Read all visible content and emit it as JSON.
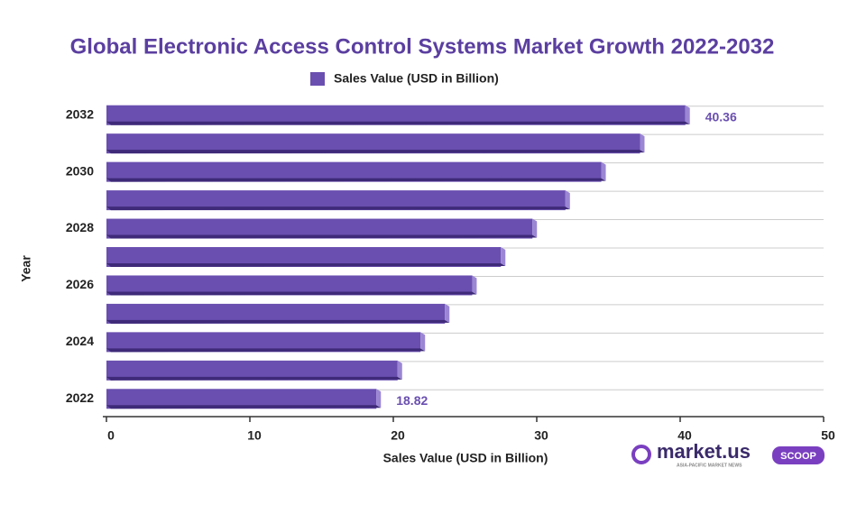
{
  "chart_data": {
    "type": "hbar",
    "title": "Global Electronic Access Control Systems Market Growth 2022-2032",
    "x_label": "Sales Value (USD in Billion)",
    "y_label": "Year",
    "categories": [
      "2022",
      null,
      "2024",
      null,
      "2026",
      null,
      "2028",
      null,
      "2030",
      null,
      "2032"
    ],
    "series": [
      {
        "name": "Sales Value (USD in Billion)",
        "color": "#6a4fb0",
        "values": [
          18.82,
          20.3,
          21.9,
          23.6,
          25.5,
          27.5,
          29.7,
          32.0,
          34.5,
          37.2,
          40.36
        ],
        "value_labels": [
          "18.82",
          null,
          null,
          null,
          null,
          null,
          null,
          null,
          null,
          null,
          "40.36"
        ]
      }
    ],
    "xlim": [
      0,
      50
    ],
    "xticks": [
      0,
      10,
      20,
      30,
      40,
      50
    ],
    "grid": true,
    "legend": "top"
  },
  "branding": {
    "logo": "market.us",
    "badge": "SCOOP",
    "tagline": "ASIA-PACIFIC MARKET NEWS"
  }
}
